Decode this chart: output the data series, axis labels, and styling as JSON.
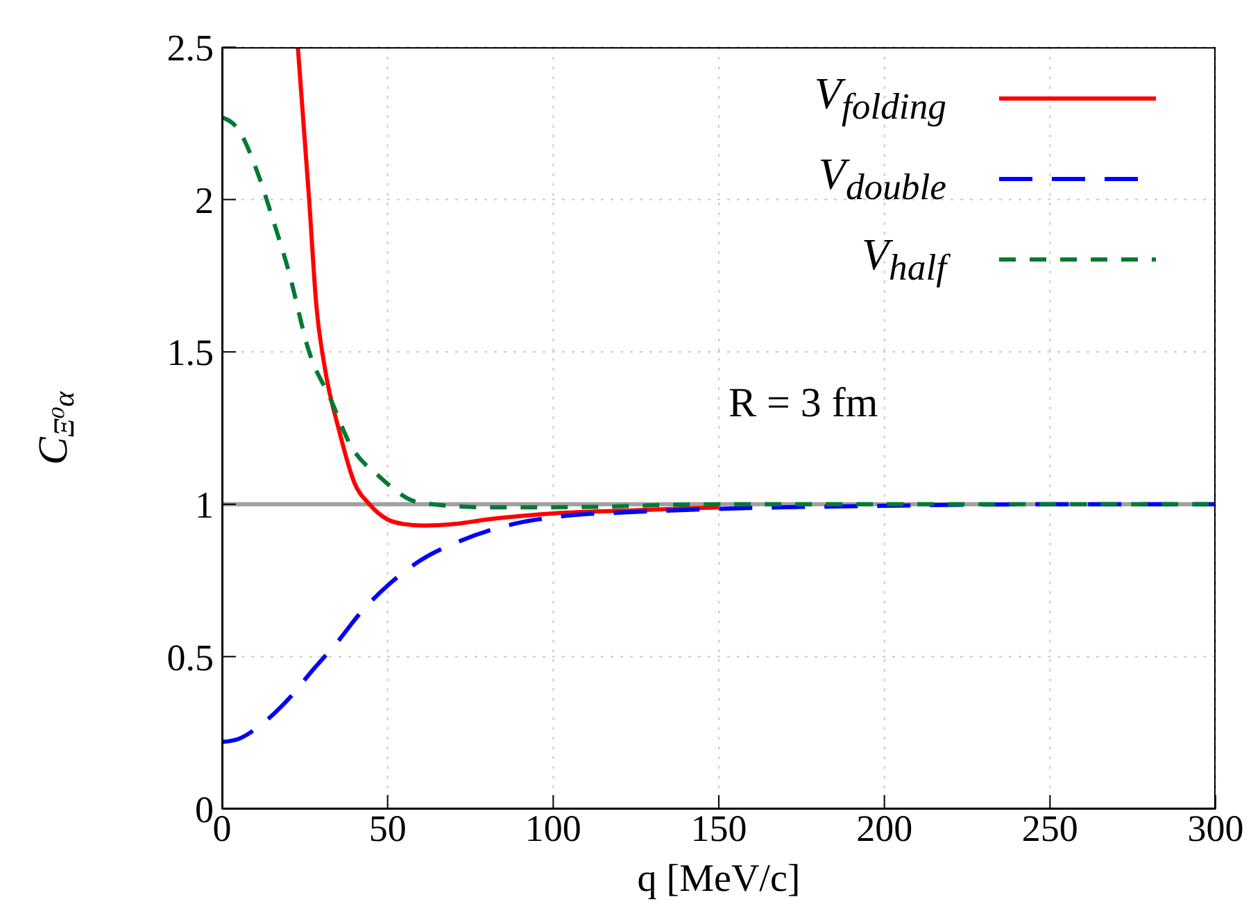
{
  "chart_data": {
    "type": "line",
    "xlabel": "q [MeV/c]",
    "ylabel": "C$_{Ξ⁰α}$",
    "xlim": [
      0,
      300
    ],
    "xticks": [
      0,
      50,
      100,
      150,
      200,
      250,
      300
    ],
    "ylim": [
      0,
      2.5
    ],
    "yticks": [
      0,
      0.5,
      1,
      1.5,
      2,
      2.5
    ],
    "grid": true,
    "legend": "top right",
    "marker": "none",
    "ref_lines": [
      {
        "axis": "y",
        "value": 1,
        "color": "#a0a0a0"
      }
    ],
    "annotations": [
      "R = 3 fm"
    ],
    "series": [
      {
        "name": "V$_{folding}$",
        "color": "#ff0000",
        "line_style": "solid",
        "x": [
          22.9,
          26.3,
          28.5,
          31,
          35.4,
          40,
          44.5,
          50,
          55,
          61,
          70,
          80,
          100,
          125,
          150
        ],
        "values": [
          2.5,
          2.0,
          1.65,
          1.45,
          1.24,
          1.07,
          1.0,
          0.95,
          0.935,
          0.93,
          0.935,
          0.95,
          0.97,
          0.98,
          0.99
        ]
      },
      {
        "name": "V$_{double}$",
        "color": "#0000ff",
        "line_style": "dashed",
        "x": [
          0,
          5,
          11,
          20,
          27.7,
          35,
          41.5,
          50.7,
          59.8,
          72,
          90,
          102,
          125,
          150,
          200,
          250,
          300
        ],
        "values": [
          0.22,
          0.23,
          0.27,
          0.36,
          0.46,
          0.55,
          0.64,
          0.74,
          0.815,
          0.88,
          0.94,
          0.96,
          0.975,
          0.985,
          0.995,
          1.0,
          1.0
        ]
      },
      {
        "name": "V$_{half}$",
        "color": "#007a33",
        "line_style": "dashed",
        "x": [
          0,
          4.9,
          11,
          15.5,
          20,
          26.3,
          33,
          38.5,
          47.6,
          59.8,
          80,
          100,
          150,
          200,
          300
        ],
        "values": [
          2.27,
          2.23,
          2.08,
          1.93,
          1.77,
          1.5,
          1.34,
          1.2,
          1.09,
          1.005,
          0.99,
          0.99,
          1.0,
          1.0,
          1.0
        ]
      }
    ]
  }
}
